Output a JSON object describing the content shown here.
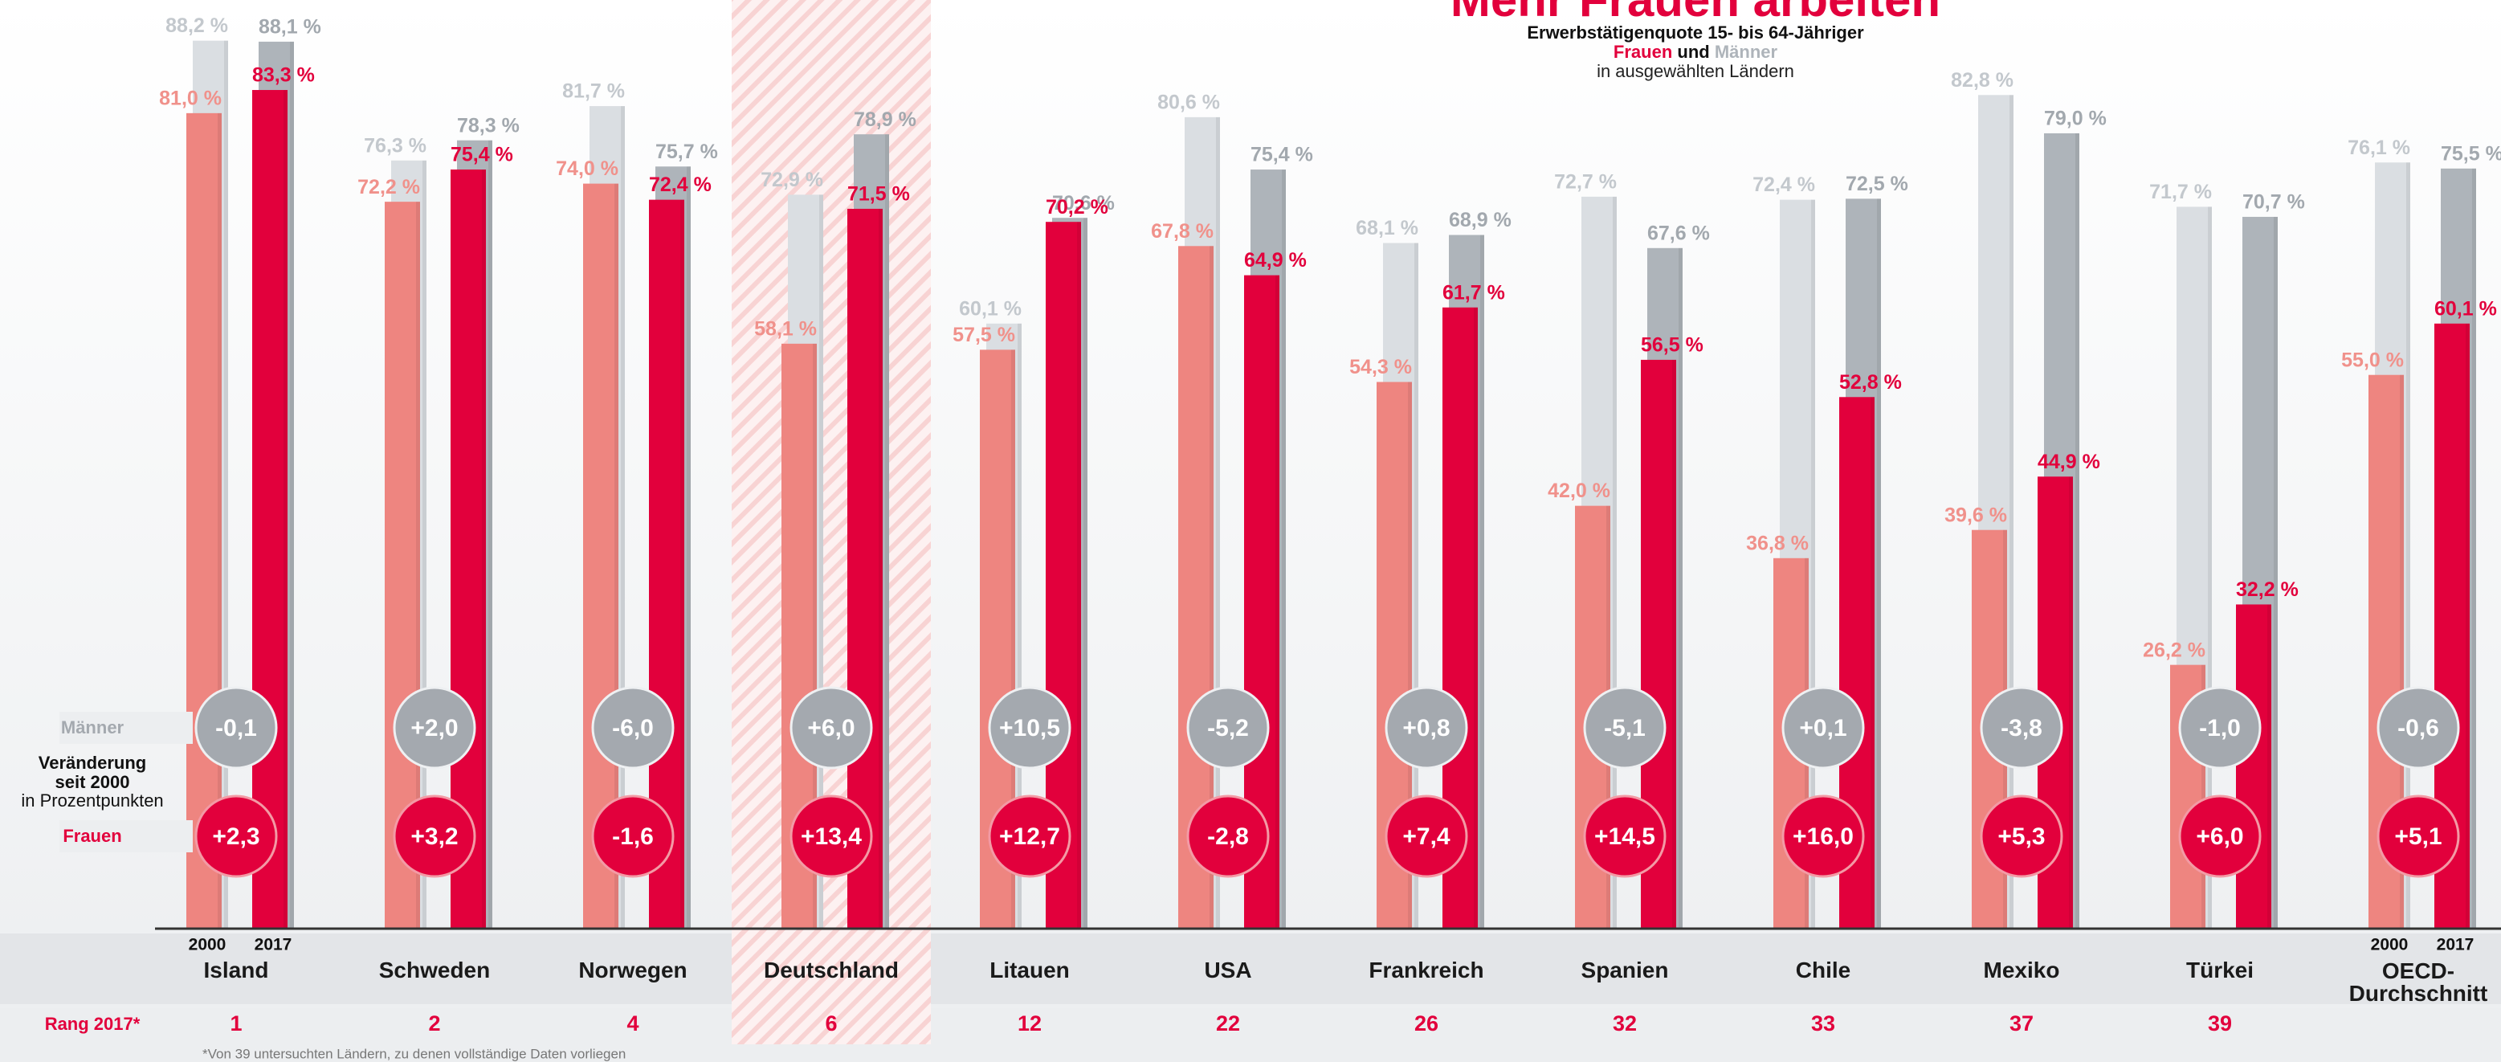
{
  "chart_data": {
    "type": "bar",
    "title": "Mehr Frauen arbeiten",
    "subtitle": "Erwerbstätigenquote 15- bis 64-Jähriger",
    "legend_conjunction": "und",
    "subtitle_2": "in ausgewählten Ländern",
    "categories": [
      "Island",
      "Schweden",
      "Norwegen",
      "Deutschland",
      "Litauen",
      "USA",
      "Frankreich",
      "Spanien",
      "Chile",
      "Mexiko",
      "Türkei",
      "OECD-Durchschnitt"
    ],
    "highlight": "Deutschland",
    "ylim": [
      0,
      92
    ],
    "series": [
      {
        "name": "Männer",
        "year": "2000",
        "color": "#dadee2",
        "values": [
          88.2,
          76.3,
          81.7,
          72.9,
          60.1,
          80.6,
          68.1,
          72.7,
          72.4,
          82.8,
          71.7,
          76.1
        ],
        "value_labels": [
          "88,2 %",
          "76,3 %",
          "81,7 %",
          "72,9 %",
          "60,1 %",
          "80,6 %",
          "68,1 %",
          "72,7 %",
          "72,4 %",
          "82,8 %",
          "71,7 %",
          "76,1 %"
        ]
      },
      {
        "name": "Frauen",
        "year": "2000",
        "color": "#ee8580",
        "values": [
          81.0,
          72.2,
          74.0,
          58.1,
          57.5,
          67.8,
          54.3,
          42.0,
          36.8,
          39.6,
          26.2,
          55.0
        ],
        "value_labels": [
          "81,0 %",
          "72,2 %",
          "74,0 %",
          "58,1 %",
          "57,5 %",
          "67,8 %",
          "54,3 %",
          "42,0 %",
          "36,8 %",
          "39,6 %",
          "26,2 %",
          "55,0 %"
        ]
      },
      {
        "name": "Männer",
        "year": "2017",
        "color": "#aeb4ba",
        "values": [
          88.1,
          78.3,
          75.7,
          78.9,
          70.6,
          75.4,
          68.9,
          67.6,
          72.5,
          79.0,
          70.7,
          75.5
        ],
        "value_labels": [
          "88,1 %",
          "78,3 %",
          "75,7 %",
          "78,9 %",
          "70,6 %",
          "75,4 %",
          "68,9 %",
          "67,6 %",
          "72,5 %",
          "79,0 %",
          "70,7 %",
          "75,5 %"
        ]
      },
      {
        "name": "Frauen",
        "year": "2017",
        "color": "#e2003c",
        "values": [
          83.3,
          75.4,
          72.4,
          71.5,
          70.2,
          64.9,
          61.7,
          56.5,
          52.8,
          44.9,
          32.2,
          60.1
        ],
        "value_labels": [
          "83,3 %",
          "75,4 %",
          "72,4 %",
          "71,5 %",
          "70,2 %",
          "64,9 %",
          "61,7 %",
          "56,5 %",
          "52,8 %",
          "44,9 %",
          "32,2 %",
          "60,1 %"
        ]
      }
    ],
    "change_title": [
      "Veränderung",
      "seit 2000",
      "in Prozentpunkten"
    ],
    "changes": [
      {
        "name": "Männer",
        "color": "#a4a9af",
        "values": [
          -0.1,
          2.0,
          -6.0,
          6.0,
          10.5,
          -5.2,
          0.8,
          -5.1,
          0.1,
          -3.8,
          -1.0,
          -0.6
        ],
        "value_labels": [
          "-0,1",
          "+2,0",
          "-6,0",
          "+6,0",
          "+10,5",
          "-5,2",
          "+0,8",
          "-5,1",
          "+0,1",
          "-3,8",
          "-1,0",
          "-0,6"
        ]
      },
      {
        "name": "Frauen",
        "color": "#e2003c",
        "values": [
          2.3,
          3.2,
          -1.6,
          13.4,
          12.7,
          -2.8,
          7.4,
          14.5,
          16.0,
          5.3,
          6.0,
          5.1
        ],
        "value_labels": [
          "+2,3",
          "+3,2",
          "-1,6",
          "+13,4",
          "+12,7",
          "-2,8",
          "+7,4",
          "+14,5",
          "+16,0",
          "+5,3",
          "+6,0",
          "+5,1"
        ]
      }
    ],
    "rank_label": "Rang 2017*",
    "ranks": [
      1,
      2,
      4,
      6,
      12,
      22,
      26,
      32,
      33,
      37,
      39,
      null
    ],
    "footnote": "*Von 39 untersuchten Ländern, zu denen vollständige Daten vorliegen"
  }
}
